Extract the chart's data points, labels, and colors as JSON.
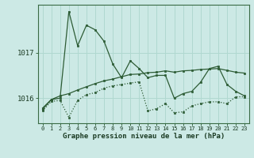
{
  "title": "Graphe pression niveau de la mer (hPa)",
  "bg_color": "#cce9e5",
  "grid_color": "#b0d8d0",
  "line_color": "#2d5c35",
  "hours": [
    0,
    1,
    2,
    3,
    4,
    5,
    6,
    7,
    8,
    9,
    10,
    11,
    12,
    13,
    14,
    15,
    16,
    17,
    18,
    19,
    20,
    21,
    22,
    23
  ],
  "line_top": [
    1015.75,
    1015.97,
    1016.0,
    1017.9,
    1017.15,
    1017.6,
    1017.5,
    1017.25,
    1016.75,
    1016.45,
    1016.82,
    1016.65,
    1016.45,
    1016.5,
    1016.5,
    1016.0,
    1016.1,
    1016.15,
    1016.35,
    1016.65,
    1016.7,
    1016.3,
    1016.15,
    1016.05
  ],
  "line_mid": [
    1015.78,
    1015.97,
    1016.05,
    1016.1,
    1016.18,
    1016.25,
    1016.32,
    1016.38,
    1016.42,
    1016.47,
    1016.52,
    1016.53,
    1016.56,
    1016.57,
    1016.6,
    1016.57,
    1016.6,
    1016.61,
    1016.63,
    1016.64,
    1016.65,
    1016.61,
    1016.57,
    1016.55
  ],
  "line_bot": [
    1015.72,
    1015.93,
    1015.95,
    1015.58,
    1015.95,
    1016.08,
    1016.12,
    1016.22,
    1016.27,
    1016.3,
    1016.33,
    1016.36,
    1015.72,
    1015.77,
    1015.88,
    1015.68,
    1015.7,
    1015.83,
    1015.88,
    1015.92,
    1015.92,
    1015.88,
    1016.03,
    1016.03
  ],
  "yticks": [
    1016,
    1017
  ],
  "ylim": [
    1015.45,
    1018.05
  ],
  "xlim": [
    -0.5,
    23.5
  ]
}
